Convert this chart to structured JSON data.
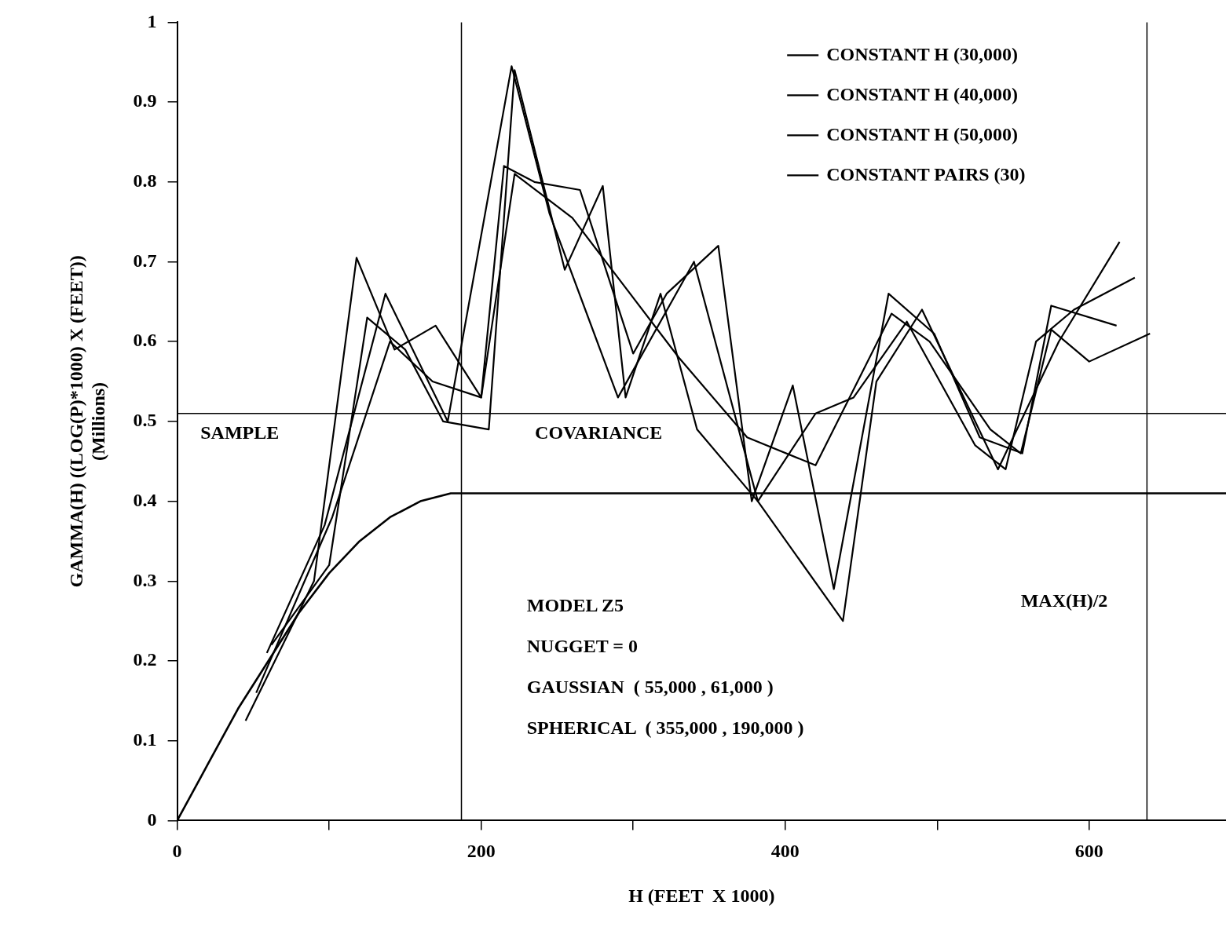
{
  "chart_data": {
    "type": "line",
    "xlabel": "H (FEET  X 1000)",
    "ylabel": "GAMMA(H) ((LOG(P)*1000) X (FEET))\n(Millions)",
    "xlim": [
      0,
      690
    ],
    "xticks": [
      0,
      {
        "value": 100,
        "label": null
      },
      200,
      {
        "value": 300,
        "label": null
      },
      400,
      {
        "value": 500,
        "label": null
      },
      600
    ],
    "ylim": [
      0,
      1
    ],
    "yticks": [
      0,
      0.1,
      0.2,
      0.3,
      0.4,
      0.5,
      0.6,
      0.7,
      0.8,
      0.9,
      1
    ],
    "grid": false,
    "legend": "top right",
    "marker": "none",
    "line_style": "solid",
    "series": [
      {
        "name": "CONSTANT H (30,000)",
        "color": "#000000",
        "x": [
          59,
          97,
          137,
          178,
          220,
          245,
          290,
          340,
          382,
          438,
          460,
          490,
          540,
          580,
          620
        ],
        "values": [
          0.21,
          0.37,
          0.66,
          0.5,
          0.945,
          0.76,
          0.53,
          0.7,
          0.4,
          0.25,
          0.55,
          0.64,
          0.44,
          0.6,
          0.725
        ]
      },
      {
        "name": "CONSTANT H (40,000)",
        "color": "#000000",
        "x": [
          45,
          90,
          118,
          143,
          170,
          200,
          215,
          235,
          265,
          300,
          322,
          356,
          378,
          405,
          432,
          468,
          498,
          528,
          556,
          575,
          618
        ],
        "values": [
          0.125,
          0.3,
          0.705,
          0.59,
          0.62,
          0.53,
          0.82,
          0.8,
          0.79,
          0.585,
          0.66,
          0.72,
          0.4,
          0.545,
          0.29,
          0.66,
          0.61,
          0.48,
          0.46,
          0.645,
          0.62
        ]
      },
      {
        "name": "CONSTANT H (50,000)",
        "color": "#000000",
        "x": [
          62,
          100,
          125,
          150,
          175,
          205,
          222,
          255,
          280,
          295,
          318,
          342,
          382,
          420,
          445,
          480,
          525,
          545,
          565,
          590,
          630
        ],
        "values": [
          0.22,
          0.32,
          0.63,
          0.59,
          0.5,
          0.49,
          0.94,
          0.69,
          0.795,
          0.53,
          0.66,
          0.49,
          0.4,
          0.51,
          0.53,
          0.625,
          0.47,
          0.44,
          0.6,
          0.64,
          0.68
        ]
      },
      {
        "name": "CONSTANT PAIRS (30)",
        "color": "#000000",
        "x": [
          52,
          102,
          140,
          168,
          200,
          222,
          260,
          290,
          330,
          375,
          420,
          470,
          495,
          535,
          555,
          575,
          600,
          640
        ],
        "values": [
          0.16,
          0.38,
          0.6,
          0.55,
          0.53,
          0.81,
          0.755,
          0.68,
          0.58,
          0.48,
          0.445,
          0.635,
          0.6,
          0.49,
          0.46,
          0.615,
          0.575,
          0.61
        ]
      },
      {
        "type": "line",
        "color": "#000000",
        "x": [
          0,
          20,
          40,
          60,
          80,
          100,
          120,
          140,
          160,
          180,
          190,
          690
        ],
        "values": [
          0,
          0.07,
          0.14,
          0.2,
          0.26,
          0.31,
          0.35,
          0.38,
          0.4,
          0.41,
          0.41,
          0.41
        ]
      }
    ],
    "ref_lines": [
      {
        "axis": "y",
        "value": 0.51,
        "color": "#000000"
      },
      {
        "axis": "x",
        "value": 187,
        "color": "#000000"
      },
      {
        "axis": "x",
        "value": 638,
        "color": "#000000"
      }
    ],
    "annotations": [
      {
        "text": "SAMPLE",
        "x": 5,
        "y": 0.51
      },
      {
        "text": "COVARIANCE",
        "x": 225,
        "y": 0.51
      },
      {
        "text": "MAX(H)/2",
        "x": 638,
        "y": 0.3
      },
      "MODEL Z5",
      "NUGGET = 0",
      "GAUSSIAN  ( 55,000 , 61,000 )",
      "SPHERICAL  ( 355,000 , 190,000 )"
    ]
  }
}
